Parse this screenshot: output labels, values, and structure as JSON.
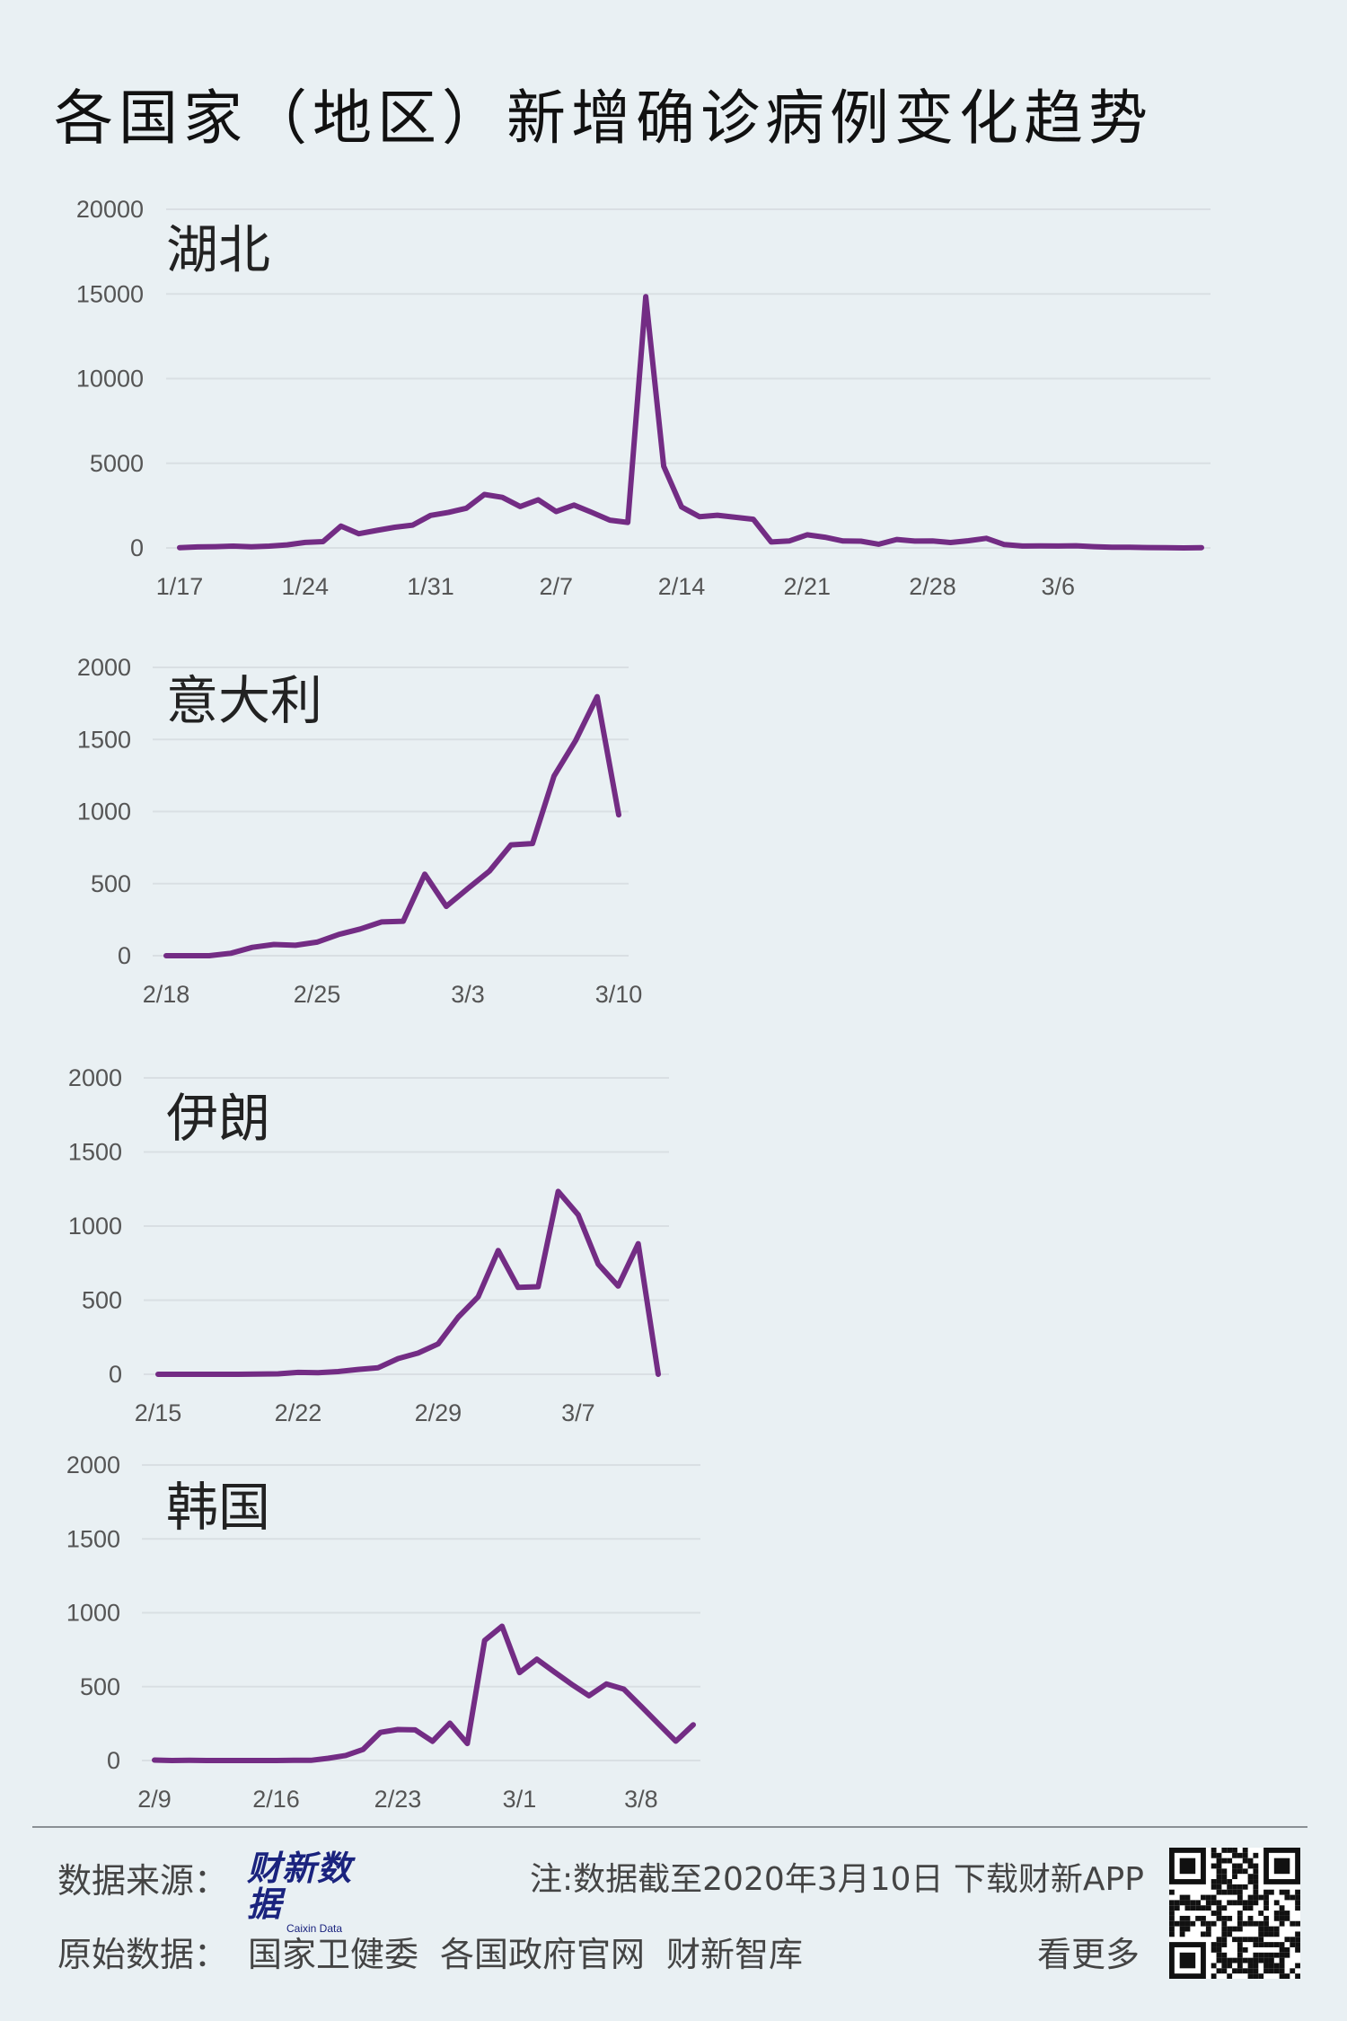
{
  "title": "各国家（地区）新增确诊病例变化趋势",
  "colors": {
    "line": "#732c84",
    "background": "#e9f0f3",
    "grid": "#d9dfe3"
  },
  "watermark_text": "财新数据",
  "chart_data": [
    {
      "type": "line",
      "title": "湖北",
      "x_start": "1/17",
      "x_ticks": [
        "1/17",
        "1/24",
        "1/31",
        "2/7",
        "2/14",
        "2/21",
        "2/28",
        "3/6"
      ],
      "y_ticks": [
        "0",
        "5000",
        "10000",
        "15000",
        "20000"
      ],
      "ylim": [
        0,
        20000
      ],
      "grid": true,
      "values": [
        17,
        59,
        72,
        105,
        69,
        105,
        180,
        323,
        371,
        1291,
        840,
        1032,
        1220,
        1347,
        1921,
        2103,
        2345,
        3156,
        2987,
        2447,
        2841,
        2147,
        2531,
        2097,
        1638,
        1508,
        14840,
        4823,
        2420,
        1843,
        1933,
        1807,
        1693,
        349,
        411,
        775,
        631,
        409,
        398,
        220,
        499,
        401,
        409,
        318,
        423,
        570,
        196,
        114,
        115,
        111,
        126,
        74,
        41,
        45,
        21,
        13,
        0,
        17
      ]
    },
    {
      "type": "line",
      "title": "意大利",
      "x_start": "2/18",
      "x_ticks": [
        "2/18",
        "2/25",
        "3/3",
        "3/10"
      ],
      "y_ticks": [
        "0",
        "500",
        "1000",
        "1500",
        "2000"
      ],
      "ylim": [
        0,
        2000
      ],
      "grid": true,
      "values": [
        0,
        0,
        0,
        17,
        58,
        78,
        72,
        94,
        147,
        185,
        234,
        239,
        566,
        342,
        466,
        587,
        769,
        778,
        1247,
        1492,
        1797,
        977
      ]
    },
    {
      "type": "line",
      "title": "伊朗",
      "x_start": "2/15",
      "x_ticks": [
        "2/15",
        "2/22",
        "2/29",
        "3/7"
      ],
      "y_ticks": [
        "0",
        "500",
        "1000",
        "1500",
        "2000"
      ],
      "ylim": [
        0,
        2000
      ],
      "grid": true,
      "values": [
        0,
        0,
        0,
        0,
        0,
        2,
        3,
        13,
        10,
        18,
        33,
        44,
        106,
        143,
        205,
        385,
        523,
        835,
        586,
        591,
        1234,
        1076,
        743,
        595,
        881,
        0
      ]
    },
    {
      "type": "line",
      "title": "韩国",
      "x_start": "2/9",
      "x_ticks": [
        "2/9",
        "2/16",
        "2/23",
        "3/1",
        "3/8"
      ],
      "y_ticks": [
        "0",
        "500",
        "1000",
        "1500",
        "2000"
      ],
      "ylim": [
        0,
        2000
      ],
      "grid": true,
      "values": [
        3,
        0,
        1,
        0,
        0,
        0,
        0,
        0,
        1,
        1,
        15,
        34,
        75,
        190,
        210,
        207,
        130,
        253,
        115,
        813,
        909,
        595,
        686,
        600,
        516,
        438,
        518,
        483,
        367,
        248,
        131,
        242
      ]
    }
  ],
  "footer": {
    "source_label": "数据来源：",
    "source_logo": "财新数据",
    "source_logo_en": "Caixin Data",
    "note": "注:数据截至2020年3月10日  下载财新APP",
    "raw_label": "原始数据：",
    "raw_sources": [
      "国家卫健委",
      "各国政府官网",
      "财新智库"
    ],
    "more": "看更多"
  }
}
